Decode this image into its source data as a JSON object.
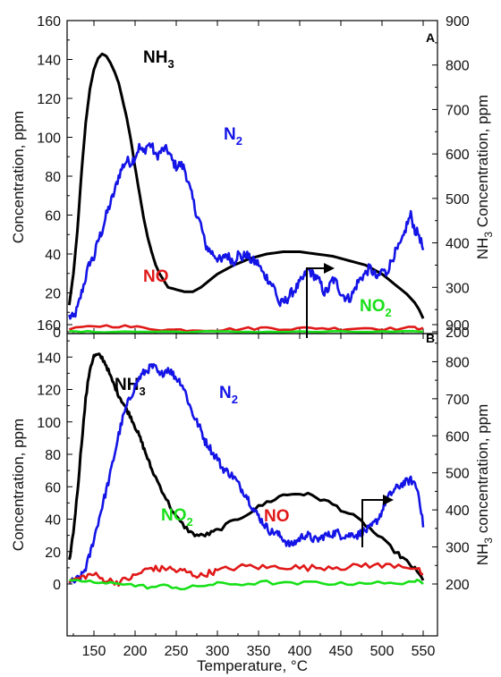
{
  "chart_data": [
    {
      "panel": "A",
      "type": "line",
      "ylabel": "Concentration, ppm",
      "y2label_parts": [
        "NH",
        "3",
        " Concentration, ppm"
      ],
      "ylim": [
        0,
        160
      ],
      "y2lim": [
        200,
        900
      ],
      "xlim": [
        110,
        560
      ],
      "xticks": [
        150,
        200,
        250,
        300,
        350,
        400,
        450,
        500,
        550
      ],
      "yticks": [
        0,
        20,
        40,
        60,
        80,
        100,
        120,
        140,
        160
      ],
      "y2ticks": [
        200,
        300,
        400,
        500,
        600,
        700,
        800,
        900
      ],
      "series": [
        {
          "key": "nh3",
          "axis": "right",
          "color": "#000000",
          "label_parts": [
            "NH",
            "3"
          ],
          "x": [
            120,
            125,
            130,
            135,
            140,
            145,
            150,
            155,
            160,
            165,
            170,
            175,
            180,
            185,
            190,
            195,
            200,
            205,
            210,
            215,
            220,
            225,
            230,
            235,
            240,
            250,
            260,
            270,
            280,
            300,
            320,
            340,
            360,
            380,
            400,
            420,
            440,
            460,
            480,
            500,
            520,
            530,
            540,
            545,
            550
          ],
          "y": [
            260,
            330,
            430,
            560,
            670,
            745,
            790,
            815,
            825,
            820,
            805,
            785,
            760,
            720,
            680,
            630,
            570,
            515,
            460,
            415,
            380,
            350,
            330,
            315,
            300,
            295,
            290,
            290,
            300,
            330,
            350,
            365,
            375,
            380,
            380,
            375,
            370,
            360,
            350,
            330,
            300,
            285,
            265,
            250,
            230
          ]
        },
        {
          "key": "n2",
          "axis": "left",
          "color": "#1414e6",
          "label_parts": [
            "N",
            "2"
          ],
          "x": [
            120,
            125,
            130,
            135,
            140,
            145,
            150,
            155,
            160,
            165,
            170,
            175,
            180,
            185,
            190,
            195,
            200,
            205,
            210,
            215,
            220,
            225,
            230,
            235,
            240,
            245,
            250,
            255,
            260,
            265,
            270,
            275,
            280,
            285,
            290,
            295,
            300,
            305,
            310,
            315,
            320,
            325,
            330,
            335,
            340,
            345,
            350,
            355,
            360,
            365,
            370,
            375,
            380,
            385,
            390,
            395,
            400,
            405,
            410,
            415,
            420,
            425,
            430,
            435,
            440,
            445,
            450,
            455,
            460,
            465,
            470,
            475,
            480,
            485,
            490,
            495,
            500,
            505,
            510,
            515,
            520,
            525,
            530,
            535,
            540,
            545,
            550
          ],
          "y": [
            8,
            7,
            12,
            20,
            28,
            36,
            38,
            47,
            52,
            60,
            66,
            72,
            80,
            85,
            88,
            87,
            90,
            95,
            92,
            96,
            96,
            90,
            92,
            94,
            93,
            88,
            85,
            86,
            84,
            76,
            68,
            60,
            55,
            45,
            42,
            40,
            38,
            36,
            40,
            38,
            36,
            40,
            38,
            40,
            37,
            36,
            35,
            30,
            28,
            25,
            22,
            14,
            15,
            17,
            20,
            22,
            25,
            28,
            32,
            30,
            28,
            25,
            20,
            22,
            27,
            25,
            20,
            18,
            17,
            20,
            25,
            28,
            30,
            33,
            30,
            27,
            32,
            30,
            35,
            40,
            43,
            47,
            55,
            60,
            52,
            50,
            42
          ],
          "jitter": 2.5
        },
        {
          "key": "no",
          "axis": "left",
          "color": "#e01818",
          "label_parts": [
            "NO"
          ],
          "x": [
            120,
            150,
            180,
            210,
            240,
            270,
            300,
            330,
            360,
            390,
            420,
            450,
            480,
            510,
            540,
            550
          ],
          "y": [
            1,
            3,
            3,
            2,
            1,
            1,
            1,
            1.5,
            2,
            1.5,
            2,
            1.5,
            2,
            1.5,
            2,
            2
          ],
          "jitter": 0.8
        },
        {
          "key": "no2",
          "axis": "left",
          "color": "#18e018",
          "label_parts": [
            "NO",
            "2"
          ],
          "x": [
            120,
            150,
            200,
            250,
            300,
            350,
            400,
            450,
            500,
            550
          ],
          "y": [
            0,
            0,
            0,
            0,
            0,
            0,
            0,
            0,
            0,
            0
          ],
          "jitter": 0.4
        }
      ]
    },
    {
      "panel": "B",
      "type": "line",
      "xlabel": "Temperature, °C",
      "ylabel": "Concentration, ppm",
      "y2label_parts": [
        "NH",
        "3",
        " concentration, ppm"
      ],
      "ylim": [
        -10,
        160
      ],
      "y2lim": [
        150,
        900
      ],
      "xlim": [
        110,
        560
      ],
      "xticks": [
        150,
        200,
        250,
        300,
        350,
        400,
        450,
        500,
        550
      ],
      "yticks": [
        0,
        20,
        40,
        60,
        80,
        100,
        120,
        140,
        160
      ],
      "y2ticks": [
        200,
        300,
        400,
        500,
        600,
        700,
        800,
        900
      ],
      "series": [
        {
          "key": "nh3",
          "axis": "right",
          "color": "#000000",
          "label_parts": [
            "NH",
            "3"
          ],
          "x": [
            120,
            125,
            130,
            135,
            140,
            145,
            150,
            155,
            160,
            165,
            170,
            175,
            180,
            185,
            190,
            195,
            200,
            205,
            210,
            215,
            220,
            230,
            240,
            250,
            260,
            270,
            280,
            290,
            300,
            320,
            340,
            360,
            380,
            400,
            420,
            440,
            460,
            480,
            500,
            520,
            530,
            540,
            550
          ],
          "y": [
            260,
            340,
            450,
            580,
            700,
            780,
            815,
            818,
            810,
            790,
            760,
            735,
            710,
            690,
            670,
            650,
            625,
            600,
            570,
            540,
            510,
            465,
            420,
            380,
            355,
            335,
            330,
            335,
            345,
            370,
            395,
            420,
            440,
            445,
            435,
            415,
            390,
            360,
            320,
            280,
            260,
            240,
            210
          ],
          "jitter": 6
        },
        {
          "key": "n2",
          "axis": "left",
          "color": "#1414e6",
          "label_parts": [
            "N",
            "2"
          ],
          "x": [
            120,
            125,
            130,
            135,
            140,
            145,
            150,
            155,
            160,
            165,
            170,
            175,
            180,
            185,
            190,
            195,
            200,
            205,
            210,
            215,
            220,
            225,
            230,
            235,
            240,
            245,
            250,
            255,
            260,
            265,
            270,
            275,
            280,
            285,
            290,
            295,
            300,
            305,
            310,
            315,
            320,
            325,
            330,
            335,
            340,
            345,
            350,
            355,
            360,
            365,
            370,
            375,
            380,
            385,
            390,
            395,
            400,
            405,
            410,
            415,
            420,
            425,
            430,
            435,
            440,
            445,
            450,
            455,
            460,
            465,
            470,
            475,
            480,
            485,
            490,
            495,
            500,
            505,
            510,
            515,
            520,
            525,
            530,
            535,
            540,
            545,
            550
          ],
          "y": [
            2,
            1,
            3,
            5,
            10,
            18,
            28,
            38,
            48,
            58,
            68,
            80,
            92,
            102,
            110,
            116,
            122,
            127,
            130,
            132,
            134,
            133,
            128,
            131,
            133,
            130,
            127,
            125,
            120,
            112,
            105,
            100,
            95,
            88,
            85,
            80,
            78,
            72,
            70,
            68,
            66,
            62,
            58,
            55,
            50,
            45,
            42,
            38,
            35,
            32,
            32,
            30,
            28,
            25,
            24,
            26,
            28,
            30,
            30,
            28,
            27,
            28,
            30,
            30,
            31,
            32,
            30,
            30,
            30,
            31,
            30,
            32,
            33,
            34,
            37,
            40,
            45,
            52,
            55,
            58,
            60,
            62,
            63,
            64,
            62,
            55,
            35
          ],
          "jitter": 2.5
        },
        {
          "key": "no",
          "axis": "left",
          "color": "#e01818",
          "label_parts": [
            "NO"
          ],
          "x": [
            120,
            130,
            140,
            150,
            160,
            170,
            180,
            190,
            200,
            210,
            220,
            230,
            240,
            250,
            260,
            270,
            280,
            290,
            300,
            320,
            340,
            360,
            380,
            400,
            420,
            440,
            460,
            480,
            500,
            520,
            540,
            550
          ],
          "y": [
            2,
            3,
            5,
            6,
            3,
            2,
            1,
            3,
            5,
            8,
            10,
            9,
            10,
            8,
            8,
            6,
            5,
            7,
            8,
            10,
            11,
            10,
            11,
            10,
            10,
            11,
            10,
            12,
            11,
            12,
            10,
            6
          ],
          "jitter": 2.0
        },
        {
          "key": "no2",
          "axis": "left",
          "color": "#18e018",
          "label_parts": [
            "NO",
            "2"
          ],
          "x": [
            120,
            140,
            160,
            180,
            200,
            220,
            240,
            260,
            280,
            300,
            330,
            360,
            390,
            420,
            450,
            480,
            510,
            540,
            550
          ],
          "y": [
            1,
            2,
            0,
            1,
            -1,
            -2,
            -1,
            -3,
            -1,
            0,
            0,
            1,
            0,
            1,
            0,
            1,
            0,
            2,
            0
          ],
          "jitter": 1.2
        }
      ]
    }
  ]
}
